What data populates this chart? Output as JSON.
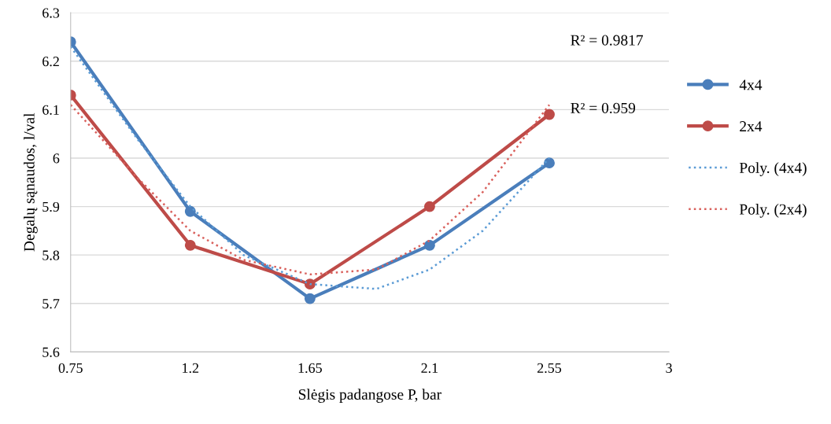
{
  "chart_data": {
    "type": "line",
    "xlabel": "Slėgis padangose P, bar",
    "ylabel": "Degalų sąnaudos, l/val",
    "x": [
      0.75,
      1.2,
      1.65,
      2.1,
      2.55
    ],
    "series": [
      {
        "name": "4x4",
        "color": "#4a7ebb",
        "values": [
          6.24,
          5.89,
          5.71,
          5.82,
          5.99
        ],
        "marker": "circle",
        "line_style": "solid"
      },
      {
        "name": "2x4",
        "color": "#be4b48",
        "values": [
          6.13,
          5.82,
          5.74,
          5.9,
          6.09
        ],
        "marker": "circle",
        "line_style": "solid"
      },
      {
        "name": "Poly. (4x4)",
        "color": "#5b9bd5",
        "x": [
          0.75,
          1.0,
          1.2,
          1.4,
          1.65,
          1.9,
          2.1,
          2.3,
          2.55
        ],
        "values": [
          6.23,
          6.04,
          5.9,
          5.8,
          5.74,
          5.73,
          5.77,
          5.85,
          6.0
        ],
        "marker": "none",
        "line_style": "dotted"
      },
      {
        "name": "Poly. (2x4)",
        "color": "#d9605c",
        "x": [
          0.75,
          1.0,
          1.2,
          1.4,
          1.65,
          1.9,
          2.1,
          2.3,
          2.55
        ],
        "values": [
          6.11,
          5.96,
          5.85,
          5.79,
          5.76,
          5.77,
          5.83,
          5.93,
          6.11
        ],
        "marker": "none",
        "line_style": "dotted"
      }
    ],
    "annotations": [
      "R² = 0.9817",
      "R² = 0.959"
    ],
    "xlim": [
      0.75,
      3
    ],
    "xticks": [
      0.75,
      1.2,
      1.65,
      2.1,
      2.55,
      3
    ],
    "ylim": [
      5.6,
      6.3
    ],
    "yticks": [
      5.6,
      5.7,
      5.8,
      5.9,
      6,
      6.1,
      6.2,
      6.3
    ],
    "grid": "y",
    "legend": "right"
  }
}
